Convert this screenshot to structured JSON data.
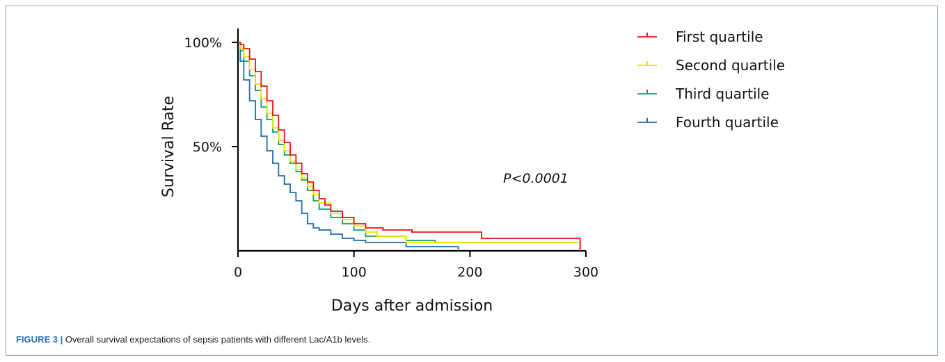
{
  "chart_data": {
    "type": "line",
    "step": true,
    "xlabel": "Days after admission",
    "ylabel": "Survival Rate",
    "xlim": [
      0,
      300
    ],
    "ylim": [
      0,
      100
    ],
    "xticks": [
      0,
      100,
      200,
      300
    ],
    "yticks": [
      {
        "value": 50,
        "label": "50%"
      },
      {
        "value": 100,
        "label": "100%"
      }
    ],
    "grid": false,
    "legend_position": "top-right",
    "annotation": "P<0.0001",
    "series": [
      {
        "name": "First quartile",
        "color": "#ee1111",
        "x": [
          0,
          2,
          5,
          10,
          15,
          20,
          25,
          30,
          35,
          40,
          45,
          50,
          55,
          60,
          65,
          70,
          75,
          80,
          90,
          100,
          110,
          125,
          150,
          210,
          295
        ],
        "y": [
          100,
          99,
          97,
          92,
          86,
          79,
          72,
          65,
          58,
          52,
          46,
          42,
          37,
          33,
          29,
          25,
          22,
          19,
          16,
          13,
          11,
          10,
          9,
          6,
          0
        ]
      },
      {
        "name": "Second quartile",
        "color": "#e6e600",
        "x": [
          0,
          2,
          5,
          10,
          15,
          20,
          25,
          30,
          35,
          40,
          45,
          50,
          55,
          60,
          65,
          70,
          80,
          90,
          100,
          110,
          120,
          145,
          295
        ],
        "y": [
          100,
          97,
          93,
          87,
          80,
          73,
          66,
          59,
          53,
          48,
          43,
          39,
          35,
          31,
          27,
          23,
          18,
          15,
          12,
          9,
          7,
          4,
          0
        ]
      },
      {
        "name": "Third quartile",
        "color": "#1a9a6c",
        "x": [
          0,
          2,
          5,
          10,
          15,
          20,
          25,
          30,
          35,
          40,
          45,
          50,
          55,
          60,
          65,
          70,
          80,
          90,
          100,
          110,
          145,
          170,
          295
        ],
        "y": [
          100,
          96,
          91,
          84,
          77,
          69,
          63,
          57,
          51,
          46,
          42,
          38,
          34,
          29,
          24,
          20,
          16,
          13,
          10,
          7,
          5,
          4,
          0
        ]
      },
      {
        "name": "Fourth quartile",
        "color": "#1f6fa8",
        "x": [
          0,
          2,
          5,
          10,
          15,
          20,
          25,
          30,
          35,
          40,
          45,
          50,
          55,
          60,
          65,
          70,
          80,
          90,
          100,
          110,
          145,
          190
        ],
        "y": [
          100,
          91,
          82,
          72,
          63,
          55,
          48,
          42,
          36,
          32,
          28,
          24,
          18,
          13,
          11,
          10,
          8,
          6,
          5,
          4,
          2,
          0
        ]
      }
    ]
  },
  "caption": {
    "label": "FIGURE 3 |",
    "text": " Overall survival expectations of sepsis patients with different Lac/A1b levels."
  }
}
